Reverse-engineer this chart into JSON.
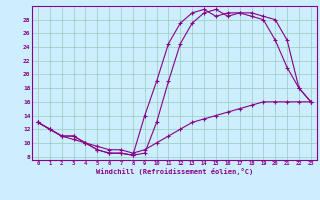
{
  "xlabel": "Windchill (Refroidissement éolien,°C)",
  "bg_color": "#cceeff",
  "line_color": "#880088",
  "grid_color": "#99ccbb",
  "xlim": [
    -0.5,
    23.5
  ],
  "ylim": [
    7.5,
    30
  ],
  "xticks": [
    0,
    1,
    2,
    3,
    4,
    5,
    6,
    7,
    8,
    9,
    10,
    11,
    12,
    13,
    14,
    15,
    16,
    17,
    18,
    19,
    20,
    21,
    22,
    23
  ],
  "yticks": [
    8,
    10,
    12,
    14,
    16,
    18,
    20,
    22,
    24,
    26,
    28
  ],
  "series": [
    {
      "x": [
        0,
        1,
        2,
        3,
        4,
        5,
        6,
        7,
        8,
        9,
        10,
        11,
        12,
        13,
        14,
        15,
        16,
        17,
        18,
        19,
        20,
        21,
        22,
        23
      ],
      "y": [
        13,
        12,
        11,
        11,
        10,
        9,
        8.5,
        8.5,
        8.2,
        8.5,
        13,
        19,
        24.5,
        27.5,
        29,
        29.5,
        28.5,
        29,
        29,
        28.5,
        28,
        25,
        18,
        16
      ]
    },
    {
      "x": [
        0,
        1,
        2,
        3,
        4,
        5,
        6,
        7,
        8,
        9,
        10,
        11,
        12,
        13,
        14,
        15,
        16,
        17,
        18,
        19,
        20,
        21,
        22,
        23
      ],
      "y": [
        13,
        12,
        11,
        11,
        10,
        9,
        8.5,
        8.5,
        8.2,
        14,
        19,
        24.5,
        27.5,
        29,
        29.5,
        28.5,
        29,
        29,
        28.5,
        28,
        25,
        21,
        18,
        16
      ]
    },
    {
      "x": [
        0,
        1,
        2,
        3,
        4,
        5,
        6,
        7,
        8,
        9,
        10,
        11,
        12,
        13,
        14,
        15,
        16,
        17,
        18,
        19,
        20,
        21,
        22,
        23
      ],
      "y": [
        13,
        12,
        11,
        10.5,
        10,
        9.5,
        9,
        9,
        8.5,
        9,
        10,
        11,
        12,
        13,
        13.5,
        14,
        14.5,
        15,
        15.5,
        16,
        16,
        16,
        16,
        16
      ]
    }
  ]
}
